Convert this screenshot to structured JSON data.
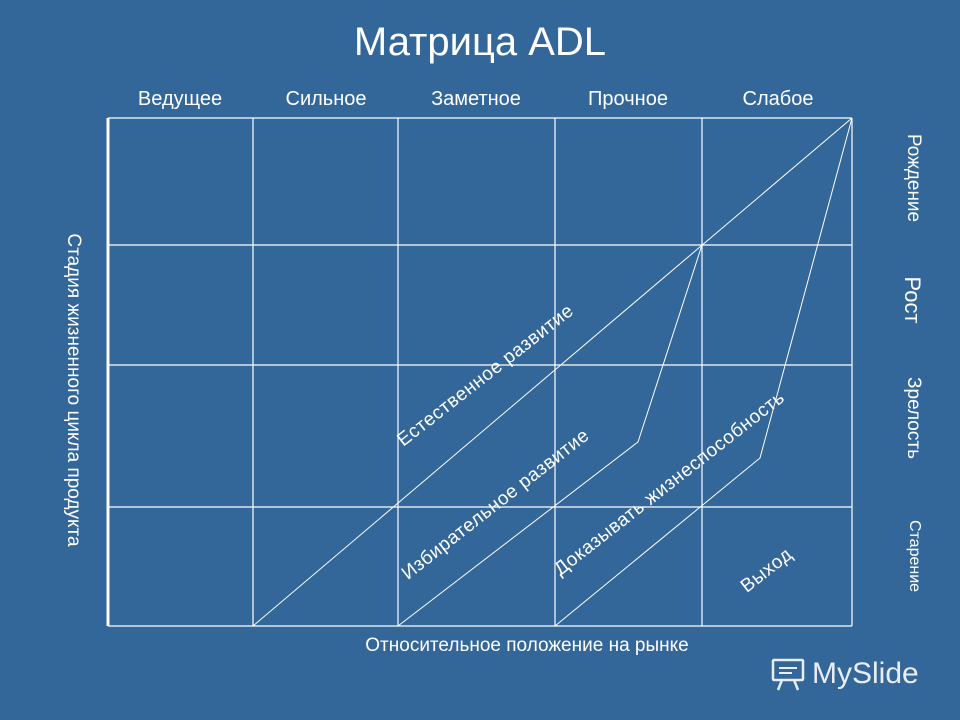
{
  "title": "Матрица ADL",
  "columns": [
    "Ведущее",
    "Сильное",
    "Заметное",
    "Прочное",
    "Слабое"
  ],
  "stages": [
    "Рождение",
    "Рост",
    "Зрелость",
    "Старение"
  ],
  "y_axis_label": "Стадия жизненного цикла продукта",
  "x_axis_label": "Относительное положение на рынке",
  "strategies": [
    "Естественное развитие",
    "Избирательное развитие",
    "Доказывать жизнеспособность",
    "Выход"
  ],
  "watermark": "MySlide"
}
